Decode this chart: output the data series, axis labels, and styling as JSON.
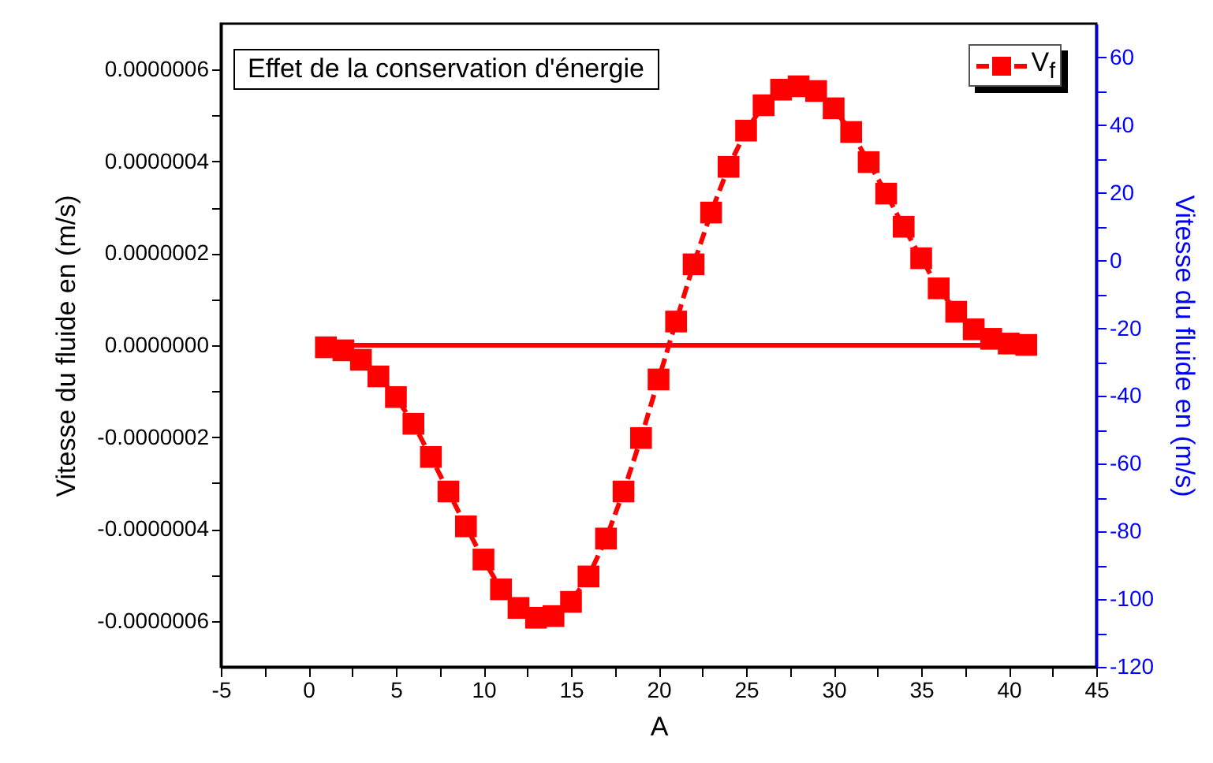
{
  "chart_data": {
    "type": "line",
    "title": "Effet de la conservation d'énergie",
    "xlabel": "A",
    "ylabel": "Vitesse du fluide en (m/s)",
    "y2label": "Vitesse du fluide en (m/s)",
    "x": [
      1,
      2,
      3,
      4,
      5,
      6,
      7,
      8,
      9,
      10,
      11,
      12,
      13,
      14,
      15,
      16,
      17,
      18,
      19,
      20,
      21,
      22,
      23,
      24,
      25,
      26,
      27,
      28,
      29,
      30,
      31,
      32,
      33,
      34,
      35,
      36,
      37,
      38,
      39,
      40,
      41
    ],
    "series": [
      {
        "color": "#ff0000",
        "line_style": "solid",
        "marker": "none",
        "axis": "y",
        "values": [
          0,
          0,
          0,
          0,
          0,
          0,
          0,
          0,
          0,
          0,
          0,
          0,
          0,
          0,
          0,
          0,
          0,
          0,
          0,
          0,
          0,
          0,
          0,
          0,
          0,
          0,
          0,
          0,
          0,
          0,
          0,
          0,
          0,
          0,
          0,
          0,
          0,
          0,
          0,
          0,
          0
        ]
      },
      {
        "name": "V$_{f}$",
        "color": "#ff0000",
        "line_style": "dashed",
        "marker": "square",
        "axis": "y2",
        "values": [
          -25.6,
          -26.5,
          -29.3,
          -34.2,
          -40.3,
          -48.2,
          -58,
          -68.2,
          -78.5,
          -88.3,
          -97.1,
          -102.6,
          -105.5,
          -105,
          -100.8,
          -93.3,
          -82.1,
          -68.2,
          -52.4,
          -35.1,
          -18,
          -1.1,
          14.2,
          27.7,
          38.4,
          45.9,
          50.5,
          51.5,
          50.1,
          45,
          38,
          29.1,
          19.8,
          10,
          0.7,
          -8.2,
          -15.1,
          -20.3,
          -23.1,
          -24.5,
          -24.9
        ]
      }
    ],
    "xlim": [
      -5,
      45
    ],
    "xticks": [
      -5,
      {
        "value": -2.5,
        "label": null
      },
      0,
      {
        "value": 2.5,
        "label": null
      },
      5,
      {
        "value": 7.5,
        "label": null
      },
      10,
      {
        "value": 12.5,
        "label": null
      },
      15,
      {
        "value": 17.5,
        "label": null
      },
      20,
      {
        "value": 22.5,
        "label": null
      },
      25,
      {
        "value": 27.5,
        "label": null
      },
      30,
      {
        "value": 32.5,
        "label": null
      },
      35,
      {
        "value": 37.5,
        "label": null
      },
      40,
      {
        "value": 42.5,
        "label": null
      },
      45
    ],
    "ylim": [
      -7e-07,
      7e-07
    ],
    "yticks": [
      {
        "value": -6e-07,
        "label": "-0.0000006"
      },
      {
        "value": -5e-07,
        "label": null
      },
      {
        "value": -4e-07,
        "label": "-0.0000004"
      },
      {
        "value": -3e-07,
        "label": null
      },
      {
        "value": -2e-07,
        "label": "-0.0000002"
      },
      {
        "value": -1e-07,
        "label": null
      },
      {
        "value": 0,
        "label": "0.0000000"
      },
      {
        "value": 1e-07,
        "label": null
      },
      {
        "value": 2e-07,
        "label": "0.0000002"
      },
      {
        "value": 3e-07,
        "label": null
      },
      {
        "value": 4e-07,
        "label": "0.0000004"
      },
      {
        "value": 5e-07,
        "label": null
      },
      {
        "value": 6e-07,
        "label": "0.0000006"
      }
    ],
    "y2lim": [
      -120,
      70
    ],
    "y2ticks": [
      -120,
      {
        "value": -110,
        "label": null
      },
      -100,
      {
        "value": -90,
        "label": null
      },
      -80,
      {
        "value": -70,
        "label": null
      },
      -60,
      {
        "value": -50,
        "label": null
      },
      -40,
      {
        "value": -30,
        "label": null
      },
      -20,
      {
        "value": -10,
        "label": null
      },
      0,
      {
        "value": 10,
        "label": null
      },
      20,
      {
        "value": 30,
        "label": null
      },
      40,
      {
        "value": 50,
        "label": null
      },
      60
    ],
    "grid": false,
    "legend": "top right"
  }
}
